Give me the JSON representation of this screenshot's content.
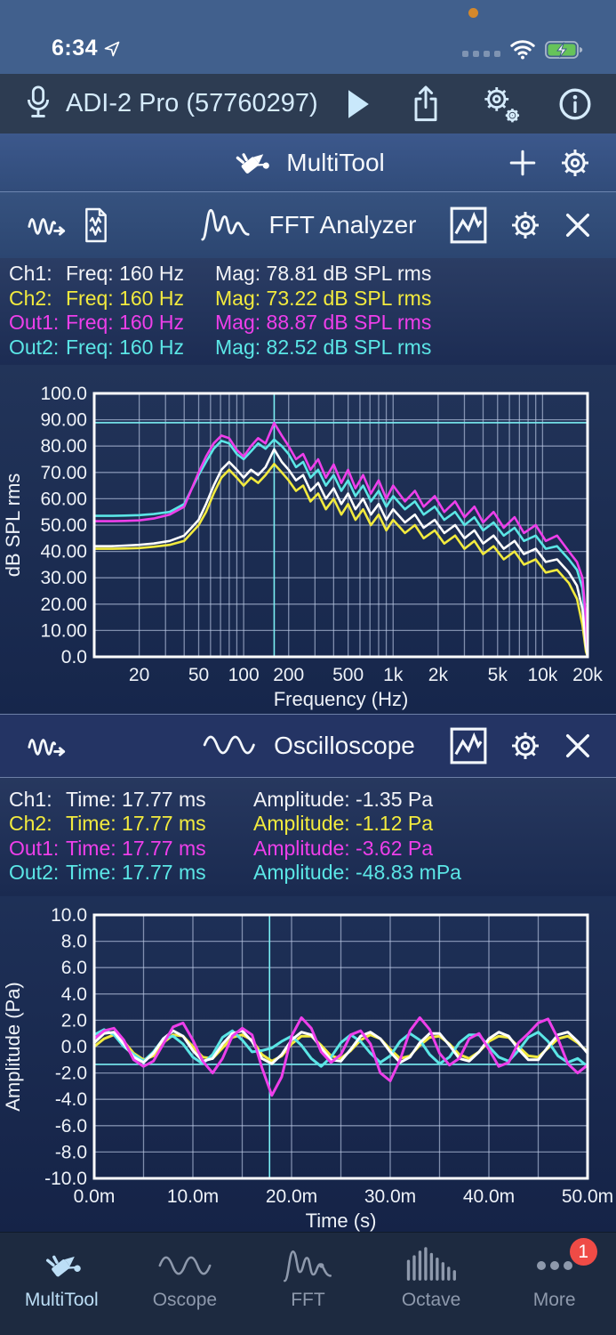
{
  "status_bar": {
    "time": "6:34"
  },
  "device_header": {
    "title": "ADI-2 Pro (57760297)"
  },
  "multitool_bar": {
    "title": "MultiTool"
  },
  "fft_module": {
    "title": "FFT Analyzer",
    "readouts": [
      {
        "ch": "Ch1:",
        "col1": "Freq: 160 Hz",
        "col2": "Mag: 78.81 dB SPL rms",
        "color": "#F2F3F7"
      },
      {
        "ch": "Ch2:",
        "col1": "Freq: 160 Hz",
        "col2": "Mag: 73.22 dB SPL rms",
        "color": "#F2EA3E"
      },
      {
        "ch": "Out1:",
        "col1": "Freq: 160 Hz",
        "col2": "Mag: 88.87 dB SPL rms",
        "color": "#EE3FEA"
      },
      {
        "ch": "Out2:",
        "col1": "Freq: 160 Hz",
        "col2": "Mag: 82.52 dB SPL rms",
        "color": "#5BE6E6"
      }
    ]
  },
  "scope_module": {
    "title": "Oscilloscope",
    "readouts": [
      {
        "ch": "Ch1:",
        "col1": "Time: 17.77 ms",
        "col2": "Amplitude: -1.35 Pa",
        "color": "#F2F3F7"
      },
      {
        "ch": "Ch2:",
        "col1": "Time: 17.77 ms",
        "col2": "Amplitude: -1.12 Pa",
        "color": "#F2EA3E"
      },
      {
        "ch": "Out1:",
        "col1": "Time: 17.77 ms",
        "col2": "Amplitude: -3.62 Pa",
        "color": "#EE3FEA"
      },
      {
        "ch": "Out2:",
        "col1": "Time: 17.77 ms",
        "col2": "Amplitude: -48.83 mPa",
        "color": "#5BE6E6"
      }
    ]
  },
  "chart_data": [
    {
      "type": "line",
      "title": "FFT Analyzer spectrum",
      "xlabel": "Frequency (Hz)",
      "ylabel": "dB SPL rms",
      "x_scale": "log",
      "xlim": [
        10,
        20000
      ],
      "ylim": [
        0,
        100
      ],
      "y_grid_step": 10,
      "grid": true,
      "cursor": {
        "x": 160,
        "y": 88.87,
        "color": "#7BEFF4"
      },
      "x_ticks": [
        {
          "v": 20,
          "label": "20"
        },
        {
          "v": 50,
          "label": "50"
        },
        {
          "v": 100,
          "label": "100"
        },
        {
          "v": 200,
          "label": "200"
        },
        {
          "v": 500,
          "label": "500"
        },
        {
          "v": 1000,
          "label": "1k"
        },
        {
          "v": 2000,
          "label": "2k"
        },
        {
          "v": 5000,
          "label": "5k"
        },
        {
          "v": 10000,
          "label": "10k"
        },
        {
          "v": 20000,
          "label": "20k"
        }
      ],
      "y_ticks": [
        {
          "v": 100,
          "label": "100.0"
        },
        {
          "v": 90,
          "label": "90.00"
        },
        {
          "v": 80,
          "label": "80.00"
        },
        {
          "v": 70,
          "label": "70.00"
        },
        {
          "v": 60,
          "label": "60.00"
        },
        {
          "v": 50,
          "label": "50.00"
        },
        {
          "v": 40,
          "label": "40.00"
        },
        {
          "v": 30,
          "label": "30.00"
        },
        {
          "v": 20,
          "label": "20.00"
        },
        {
          "v": 10,
          "label": "10.00"
        },
        {
          "v": 0,
          "label": "0.0"
        }
      ],
      "x": [
        10,
        13,
        16,
        20,
        25,
        32,
        40,
        50,
        56,
        63,
        71,
        80,
        90,
        100,
        112,
        125,
        140,
        160,
        180,
        200,
        224,
        250,
        280,
        315,
        355,
        400,
        450,
        500,
        560,
        630,
        710,
        800,
        900,
        1000,
        1200,
        1400,
        1600,
        1900,
        2200,
        2600,
        3000,
        3500,
        4000,
        4700,
        5500,
        6500,
        7500,
        9000,
        10500,
        12500,
        15000,
        17000,
        18500,
        19500,
        20000
      ],
      "series": [
        {
          "name": "Ch2",
          "color": "#F2EA3E",
          "values": [
            41,
            41,
            41.1,
            41.3,
            41.8,
            42.5,
            44,
            50,
            55,
            62,
            68,
            71,
            68,
            65,
            68,
            66,
            69,
            73.2,
            70,
            67,
            63,
            65,
            59,
            62,
            56,
            60,
            54,
            58,
            52,
            56,
            50,
            54,
            48,
            52,
            47,
            50,
            45,
            48,
            43,
            46,
            41,
            44,
            39,
            42,
            37,
            40,
            35,
            37,
            32,
            33,
            28,
            22,
            12,
            2,
            0.2
          ]
        },
        {
          "name": "Out2",
          "color": "#5BE6E6",
          "values": [
            53.5,
            53.5,
            53.6,
            53.8,
            54.2,
            55,
            58,
            69,
            74,
            79,
            82,
            81,
            77,
            75,
            78,
            81,
            79,
            82.5,
            80,
            77,
            72,
            74,
            68,
            71,
            65,
            69,
            63,
            67,
            61,
            65,
            59,
            63,
            57,
            61,
            56,
            59,
            54,
            57,
            52,
            55,
            50,
            53,
            48,
            51,
            46,
            49,
            44,
            46,
            41,
            42,
            37,
            33,
            26,
            10,
            0.5
          ]
        },
        {
          "name": "Ch1",
          "color": "#FFFFFF",
          "values": [
            42,
            42,
            42.2,
            42.5,
            43,
            44,
            46,
            52,
            58,
            65,
            71,
            74,
            71,
            68,
            71,
            69,
            72,
            78.8,
            74,
            71,
            67,
            69,
            63,
            66,
            60,
            64,
            58,
            62,
            56,
            60,
            54,
            58,
            52,
            56,
            51,
            54,
            49,
            52,
            47,
            50,
            45,
            48,
            43,
            46,
            41,
            44,
            39,
            41,
            36,
            37,
            32,
            27,
            18,
            4,
            0.3
          ]
        },
        {
          "name": "Out1",
          "color": "#EE3FEA",
          "values": [
            51.5,
            51.5,
            51.6,
            51.8,
            52.5,
            54,
            57,
            70,
            76,
            81,
            84,
            83,
            78.5,
            76,
            80,
            83,
            81,
            88.8,
            84,
            80,
            75,
            77,
            71,
            75,
            68,
            73,
            66,
            71,
            64,
            69,
            62,
            67,
            60,
            65,
            59,
            63,
            57,
            61,
            55,
            59,
            53,
            57,
            51,
            55,
            49,
            53,
            47,
            50,
            44,
            46,
            40,
            36,
            30,
            14,
            1
          ]
        }
      ]
    },
    {
      "type": "line",
      "title": "Oscilloscope trace",
      "xlabel": "Time (s)",
      "ylabel": "Amplitude (Pa)",
      "x_scale": "linear",
      "xlim": [
        0,
        50
      ],
      "ylim": [
        -10,
        10
      ],
      "x_grid_step": 5,
      "y_grid_step": 2,
      "grid": true,
      "cursor": {
        "x": 17.77,
        "y": -1.35,
        "color": "#7BEFF4"
      },
      "x_ticks": [
        {
          "v": 0,
          "label": "0.0m"
        },
        {
          "v": 10,
          "label": "10.0m"
        },
        {
          "v": 20,
          "label": "20.0m"
        },
        {
          "v": 30,
          "label": "30.0m"
        },
        {
          "v": 40,
          "label": "40.0m"
        },
        {
          "v": 50,
          "label": "50.0m"
        }
      ],
      "y_ticks": [
        {
          "v": 10,
          "label": "10.0"
        },
        {
          "v": 8,
          "label": "8.0"
        },
        {
          "v": 6,
          "label": "6.0"
        },
        {
          "v": 4,
          "label": "4.0"
        },
        {
          "v": 2,
          "label": "2.0"
        },
        {
          "v": 0,
          "label": "0.0"
        },
        {
          "v": -2,
          "label": "-2.0"
        },
        {
          "v": -4,
          "label": "-4.0"
        },
        {
          "v": -6,
          "label": "-6.0"
        },
        {
          "v": -8,
          "label": "-8.0"
        },
        {
          "v": -10,
          "label": "-10.0"
        }
      ],
      "x": [
        0,
        1,
        2,
        3,
        4,
        5,
        6,
        7,
        8,
        9,
        10,
        11,
        12,
        13,
        14,
        15,
        16,
        17,
        18,
        19,
        20,
        21,
        22,
        23,
        24,
        25,
        26,
        27,
        28,
        29,
        30,
        31,
        32,
        33,
        34,
        35,
        36,
        37,
        38,
        39,
        40,
        41,
        42,
        43,
        44,
        45,
        46,
        47,
        48,
        49,
        50
      ],
      "series": [
        {
          "name": "Ch2",
          "color": "#F2EA3E",
          "values": [
            0,
            0.6,
            0.9,
            0.4,
            -0.5,
            -1,
            -0.7,
            0.3,
            0.9,
            0.8,
            0,
            -0.8,
            -0.9,
            -0.1,
            0.7,
            0.9,
            0.5,
            -0.6,
            -1.1,
            -0.7,
            0.2,
            0.8,
            0.8,
            0.1,
            -0.7,
            -0.9,
            -0.3,
            0.5,
            0.9,
            0.6,
            -0.2,
            -0.9,
            -0.7,
            0.1,
            0.7,
            0.8,
            0.2,
            -0.6,
            -0.9,
            -0.4,
            0.4,
            0.8,
            0.7,
            0,
            -0.7,
            -0.8,
            -0.1,
            0.6,
            0.8,
            0.3,
            -0.4
          ]
        },
        {
          "name": "Out2",
          "color": "#5BE6E6",
          "values": [
            0.9,
            1.3,
            0.9,
            0,
            -0.6,
            -1.1,
            -0.4,
            0.6,
            0.8,
            0.2,
            -0.8,
            -1.3,
            -0.6,
            0.7,
            1.2,
            0.5,
            -0.4,
            -0.3,
            -0.1,
            0.4,
            0.8,
            0.1,
            -0.9,
            -1.5,
            -0.8,
            0.3,
            0.9,
            0.4,
            -0.5,
            -1.2,
            -0.7,
            0.4,
            1,
            0.5,
            -0.6,
            -1.3,
            -0.8,
            0.3,
            0.9,
            0.9,
            0,
            -0.8,
            -1.1,
            -0.3,
            0.7,
            1.1,
            0.4,
            -0.7,
            -1.2,
            -0.9,
            -1.5
          ]
        },
        {
          "name": "Ch1",
          "color": "#FFFFFF",
          "values": [
            0.3,
            1,
            1.1,
            0.2,
            -0.8,
            -1.2,
            -0.5,
            0.6,
            1.2,
            0.8,
            -0.3,
            -1.1,
            -0.9,
            0.2,
            1,
            1.2,
            0.4,
            -0.9,
            -1.3,
            -0.6,
            0.5,
            1.1,
            0.9,
            -0.1,
            -1,
            -1.1,
            -0.2,
            0.8,
            1.1,
            0.6,
            -0.4,
            -1.2,
            -0.8,
            0.3,
            1,
            1,
            0.1,
            -0.9,
            -1.1,
            -0.4,
            0.6,
            1.1,
            0.8,
            -0.2,
            -1,
            -1,
            0,
            0.9,
            1.1,
            0.4,
            -0.5
          ]
        },
        {
          "name": "Out1",
          "color": "#EE3FEA",
          "values": [
            0.6,
            1.2,
            1.4,
            0.5,
            -1,
            -1.5,
            -1.1,
            0.2,
            1.5,
            1.8,
            0.5,
            -1.1,
            -2,
            -0.9,
            0.8,
            1.4,
            0.9,
            -1.6,
            -3.7,
            -2.3,
            0.8,
            2.2,
            1.4,
            -0.4,
            -1.2,
            -0.6,
            0.9,
            1.2,
            0.2,
            -2,
            -2.6,
            -1,
            1.2,
            2.2,
            1.3,
            -0.5,
            -1.4,
            -0.9,
            0.6,
            1,
            -0.2,
            -1.5,
            -1.2,
            0.3,
            1,
            1.8,
            2.1,
            0.6,
            -1.3,
            -2,
            -1.4
          ]
        }
      ]
    }
  ],
  "tab_bar": {
    "items": [
      {
        "label": "MultiTool",
        "active": true
      },
      {
        "label": "Oscope"
      },
      {
        "label": "FFT"
      },
      {
        "label": "Octave"
      },
      {
        "label": "More",
        "badge": "1"
      }
    ]
  },
  "colors": {
    "cursor": "#7BEFF4",
    "accent_blue": "#BCDEF6",
    "badge_red": "#EF4B46",
    "battery_green": "#66C35A"
  }
}
